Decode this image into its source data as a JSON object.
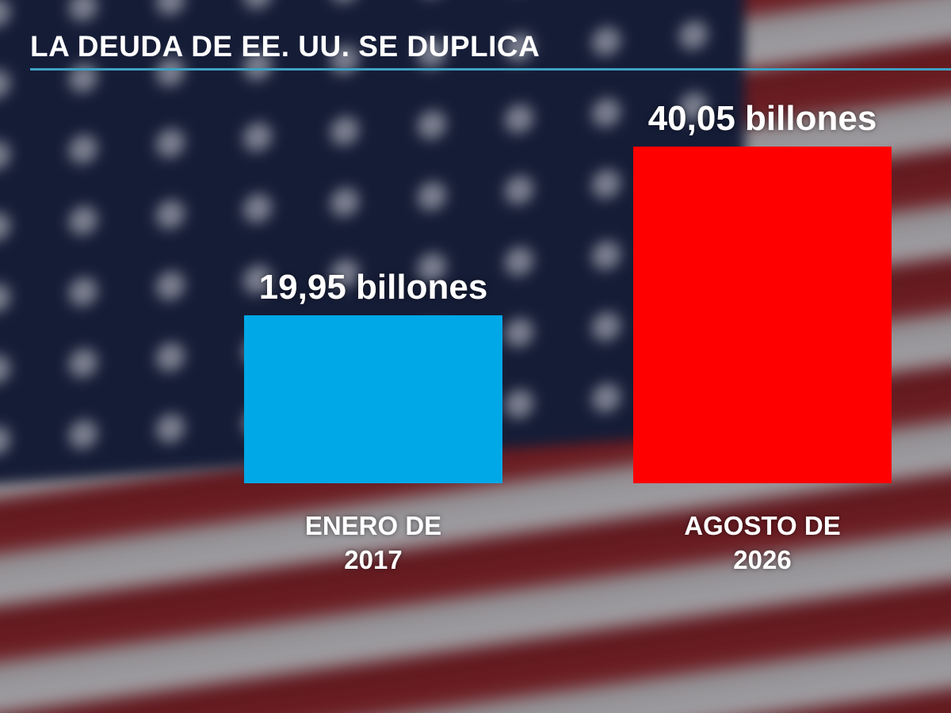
{
  "chart_data": {
    "type": "bar",
    "title": "LA DEUDA DE EE. UU. SE DUPLICA",
    "categories": [
      "ENERO DE 2017",
      "AGOSTO DE 2026"
    ],
    "values": [
      19.95,
      40.05
    ],
    "value_labels": [
      "19,95 billones",
      "40,05 billones"
    ],
    "colors": [
      "#00a8e8",
      "#ff0000"
    ]
  }
}
